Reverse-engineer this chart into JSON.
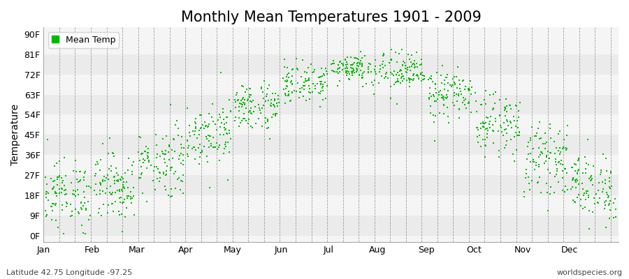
{
  "title": "Monthly Mean Temperatures 1901 - 2009",
  "ylabel": "Temperature",
  "subtitle_left": "Latitude 42.75 Longitude -97.25",
  "subtitle_right": "worldspecies.org",
  "legend_label": "Mean Temp",
  "dot_color": "#00bb00",
  "background_color": "#ffffff",
  "band_colors": [
    "#ebebeb",
    "#f5f5f5"
  ],
  "yticks": [
    0,
    9,
    18,
    27,
    36,
    45,
    54,
    63,
    72,
    81,
    90
  ],
  "ytick_labels": [
    "0F",
    "9F",
    "18F",
    "27F",
    "36F",
    "45F",
    "54F",
    "63F",
    "72F",
    "81F",
    "90F"
  ],
  "ylim": [
    -3,
    93
  ],
  "month_names": [
    "Jan",
    "Feb",
    "Mar",
    "Apr",
    "May",
    "Jun",
    "Jul",
    "Aug",
    "Sep",
    "Oct",
    "Nov",
    "Dec"
  ],
  "month_days": [
    31,
    28,
    31,
    30,
    31,
    30,
    31,
    31,
    30,
    31,
    30,
    31
  ],
  "monthly_mean": [
    18.5,
    22.0,
    33.0,
    46.0,
    57.5,
    68.0,
    75.0,
    73.0,
    63.0,
    50.0,
    34.0,
    21.5
  ],
  "monthly_std": [
    7.5,
    7.5,
    8.0,
    7.0,
    5.5,
    4.5,
    3.5,
    4.5,
    5.5,
    6.5,
    7.5,
    7.5
  ],
  "n_years": 109,
  "title_fontsize": 15,
  "axis_fontsize": 10,
  "tick_fontsize": 9,
  "small_fontsize": 8
}
